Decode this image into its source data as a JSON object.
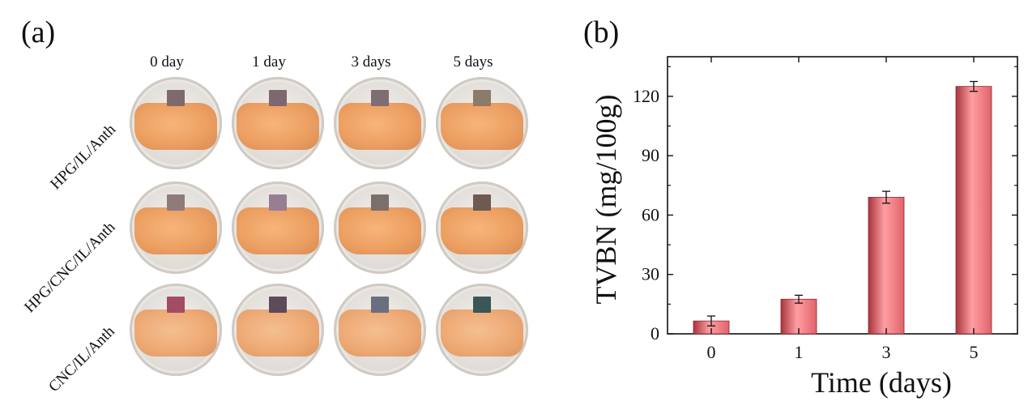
{
  "panel_labels": {
    "a": "(a)",
    "b": "(b)"
  },
  "photos": {
    "columns": [
      "0 day",
      "1 day",
      "3 days",
      "5 days"
    ],
    "rows": [
      {
        "label": "HPG/IL/Anth",
        "indicator_colors": [
          "#7e6a6b",
          "#7d6870",
          "#7e6e74",
          "#8a7c68"
        ]
      },
      {
        "label": "HPG/CNC/IL/Anth",
        "indicator_colors": [
          "#907a7c",
          "#977e93",
          "#7b6f6d",
          "#6d5a52"
        ]
      },
      {
        "label": "CNC/IL/Anth",
        "indicator_colors": [
          "#a24c66",
          "#5f4a5c",
          "#6a6f80",
          "#3a5658"
        ]
      }
    ]
  },
  "chart_data": {
    "type": "bar",
    "categories": [
      "0",
      "1",
      "3",
      "5"
    ],
    "values": [
      6.5,
      17.5,
      69,
      125
    ],
    "errors": [
      2.5,
      2,
      3,
      2.5
    ],
    "xlabel": "Time (days)",
    "ylabel": "TVBN (mg/100g)",
    "ylim": [
      0,
      140
    ],
    "yticks": [
      0,
      30,
      60,
      90,
      120
    ],
    "bar_color": "#e0636a"
  }
}
